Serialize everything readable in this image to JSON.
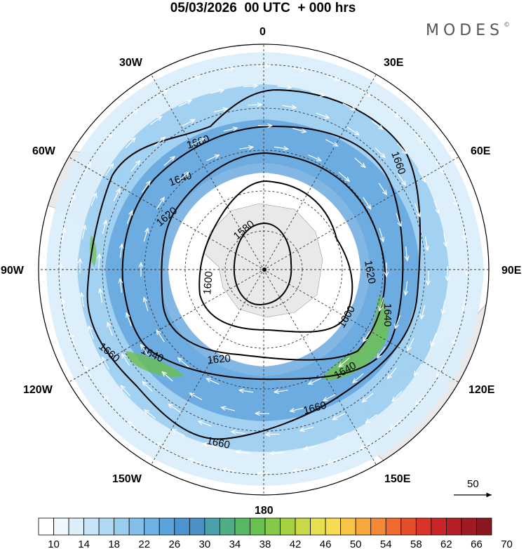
{
  "header": {
    "title": "05/03/2026  00 UTC  + 000 hrs",
    "brand": "MODES",
    "brand_mark": "©"
  },
  "map": {
    "projection": "polar stereographic, south pole",
    "center": "south pole",
    "longitude_labels": {
      "top": "0",
      "top_right": "30E",
      "right_upper": "60E",
      "right": "90E",
      "right_lower": "120E",
      "bottom_right": "150E",
      "bottom": "180",
      "bottom_left": "150W",
      "left_lower": "120W",
      "left": "90W",
      "left_upper": "60W",
      "top_left": "30W"
    },
    "contour_labels": [
      "1580",
      "1600",
      "1620",
      "1640",
      "1660"
    ],
    "contour_label_placements": [
      "1660",
      "1640",
      "1620",
      "1580",
      "1600",
      "1620",
      "1640",
      "1600",
      "1620",
      "1640",
      "1660",
      "1660",
      "1640",
      "1660",
      "1660"
    ],
    "reference_vector": "50",
    "colors": {
      "land": "#e9e9e9",
      "shade_low": "#dbeefa",
      "shade_mid": "#9ccdef",
      "shade_high": "#5a9fd9",
      "jet_core": "#6cbf4f"
    }
  },
  "colorbar": {
    "colors": [
      "#ffffff",
      "#f0f8fd",
      "#dceefa",
      "#c6e4f6",
      "#b0daf3",
      "#98cdee",
      "#82c0e9",
      "#6cb2e3",
      "#5aa3dc",
      "#4c93d2",
      "#4a8fc6",
      "#4b9faa",
      "#4fad86",
      "#56b864",
      "#68c14e",
      "#84c948",
      "#a5d042",
      "#c8d847",
      "#e6df50",
      "#f5dc50",
      "#f8c446",
      "#f7a73c",
      "#f48835",
      "#ee6a2f",
      "#e54e2b",
      "#d9342a",
      "#c92528",
      "#b51f26",
      "#9f1b23",
      "#88171f"
    ],
    "tick_labels": [
      "10",
      "14",
      "18",
      "22",
      "26",
      "30",
      "34",
      "38",
      "42",
      "46",
      "50",
      "54",
      "58",
      "62",
      "66",
      "70"
    ]
  }
}
